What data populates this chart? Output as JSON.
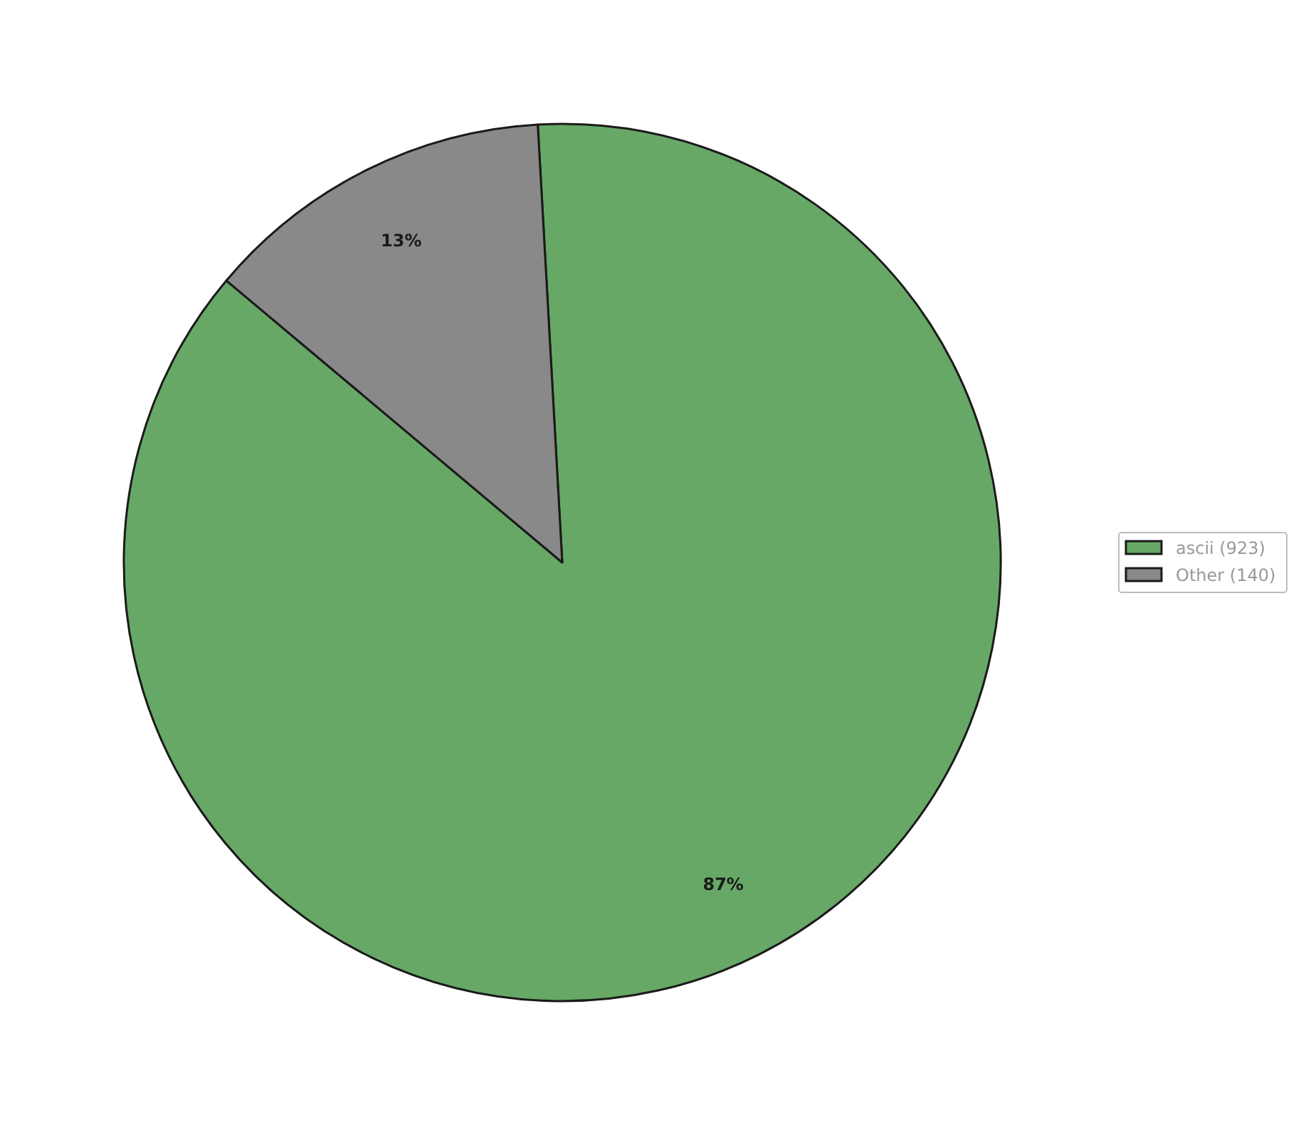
{
  "chart_data": {
    "type": "pie",
    "categories": [
      "ascii (923)",
      "Other (140)"
    ],
    "values": [
      87,
      13
    ],
    "colors": [
      "#67a866",
      "#898989"
    ],
    "value_labels": [
      "87%",
      "13%"
    ],
    "legend": "right"
  }
}
